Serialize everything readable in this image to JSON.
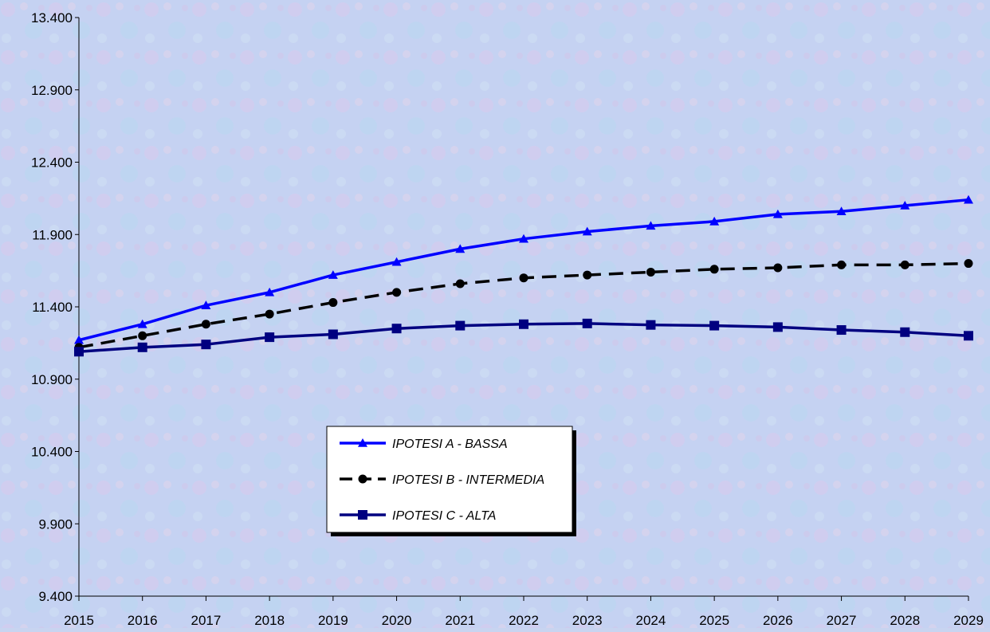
{
  "chart_data": {
    "type": "line",
    "x": [
      "2015",
      "2016",
      "2017",
      "2018",
      "2019",
      "2020",
      "2021",
      "2022",
      "2023",
      "2024",
      "2025",
      "2026",
      "2027",
      "2028",
      "2029"
    ],
    "ylim": [
      9400,
      13400
    ],
    "yticks": [
      9400,
      9900,
      10400,
      10900,
      11400,
      11900,
      12400,
      12900,
      13400
    ],
    "ytick_labels": [
      "9.400",
      "9.900",
      "10.400",
      "10.900",
      "11.400",
      "11.900",
      "12.400",
      "12.900",
      "13.400"
    ],
    "grid": false,
    "legend_position": "center-bottom",
    "series": [
      {
        "name": "IPOTESI A - BASSA",
        "color": "#0000ff",
        "marker": "triangle",
        "dash": "solid",
        "values": [
          11170,
          11280,
          11410,
          11500,
          11620,
          11710,
          11800,
          11870,
          11920,
          11960,
          11990,
          12040,
          12060,
          12100,
          12140
        ]
      },
      {
        "name": "IPOTESI B - INTERMEDIA",
        "color": "#000000",
        "marker": "circle",
        "dash": "dashed",
        "values": [
          11120,
          11200,
          11280,
          11350,
          11430,
          11500,
          11560,
          11600,
          11620,
          11640,
          11660,
          11670,
          11690,
          11690,
          11700
        ]
      },
      {
        "name": "IPOTESI C - ALTA",
        "color": "#000080",
        "marker": "square",
        "dash": "solid",
        "values": [
          11090,
          11120,
          11140,
          11190,
          11210,
          11250,
          11270,
          11280,
          11285,
          11275,
          11270,
          11260,
          11240,
          11225,
          11200
        ]
      }
    ]
  }
}
